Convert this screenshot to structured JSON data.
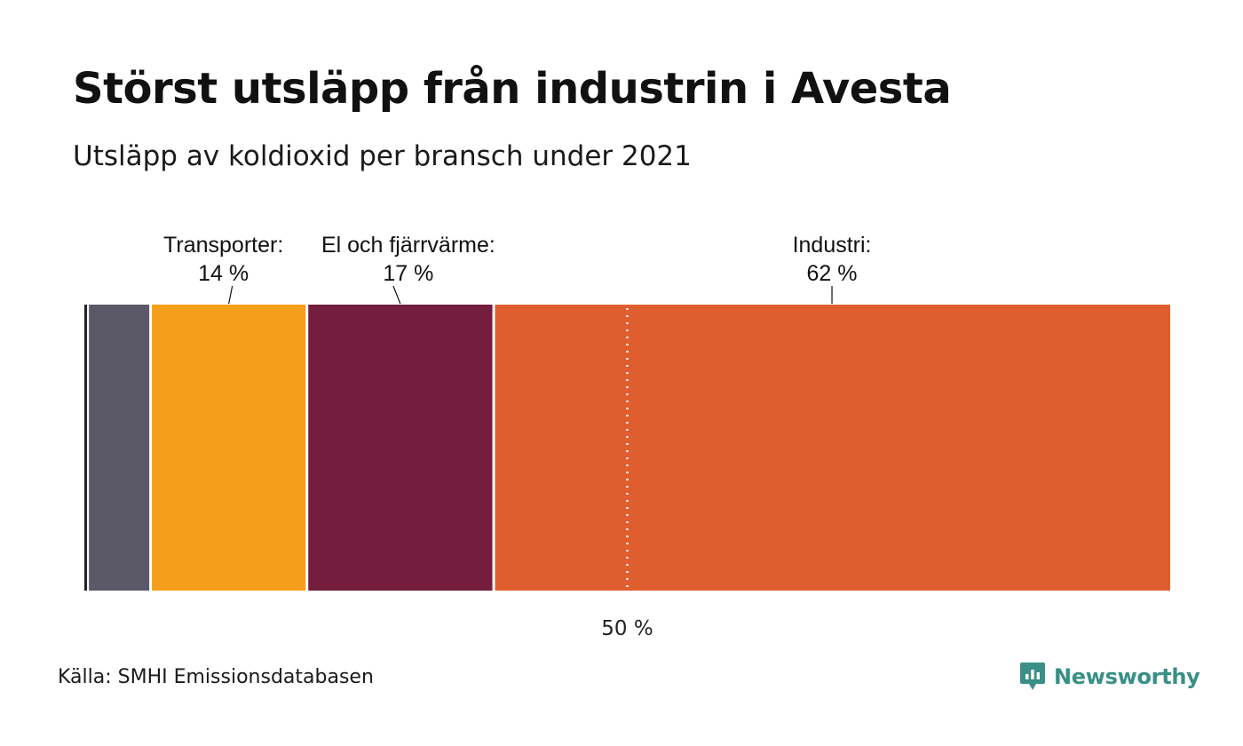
{
  "title": "Störst utsläpp från industrin i Avesta",
  "subtitle": "Utsläpp av koldioxid per bransch under 2021",
  "source": "Källa: SMHI Emissionsdatabasen",
  "brand": {
    "name": "Newsworthy",
    "color": "#3a8f86",
    "icon": "newsworthy-logo-icon"
  },
  "chart_data": {
    "type": "bar",
    "orientation": "horizontal-stacked-100",
    "xlim": [
      0,
      100
    ],
    "reference_line": {
      "value": 50,
      "label": "50 %",
      "style": "dotted"
    },
    "segments": [
      {
        "value": 0.3,
        "color": "#333333",
        "label": "",
        "pct_label": ""
      },
      {
        "value": 5.8,
        "color": "#5b5968",
        "label": "",
        "pct_label": ""
      },
      {
        "value": 14.4,
        "color": "#f59e1c",
        "label": "Transporter:",
        "pct_label": "14 %"
      },
      {
        "value": 17.2,
        "color": "#741d3c",
        "label": "El och fjärrvärme:",
        "pct_label": "17 %"
      },
      {
        "value": 62.3,
        "color": "#e05e2e",
        "label": "Industri:",
        "pct_label": "62 %"
      }
    ]
  }
}
